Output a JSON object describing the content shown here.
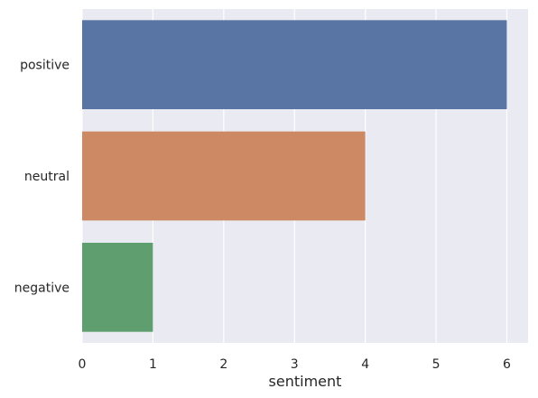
{
  "chart_data": {
    "type": "bar",
    "orientation": "horizontal",
    "categories": [
      "positive",
      "neutral",
      "negative"
    ],
    "values": [
      6,
      4,
      1
    ],
    "colors": [
      "#5875a4",
      "#cc8963",
      "#5f9e6e"
    ],
    "xlabel": "sentiment",
    "ylabel": "",
    "xlim": [
      0,
      6.3
    ],
    "xticks": [
      "0",
      "1",
      "2",
      "3",
      "4",
      "5",
      "6"
    ],
    "grid": true,
    "background": "#eaeaf2",
    "grid_color": "#ffffff"
  }
}
